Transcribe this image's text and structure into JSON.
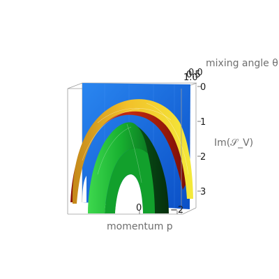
{
  "chart_data": {
    "type": "surface3d",
    "xlabel": "momentum p",
    "ylabel": "mixing angle θ",
    "zlabel": "Im(𝒮_V)",
    "x_ticks": [
      "0",
      "−2"
    ],
    "y_ticks": [
      "0.0",
      "0.5",
      "1.0"
    ],
    "z_ticks": [
      "0",
      "1",
      "2",
      "3"
    ],
    "xlim": [
      -3,
      3
    ],
    "ylim": [
      0,
      1
    ],
    "zlim": [
      0,
      3.2
    ],
    "z_axis_inverted": true,
    "surfaces": [
      {
        "id": "outer",
        "colors": [
          "#f2e41c",
          "#f0a020",
          "#b01c10"
        ],
        "apex": 0.75
      },
      {
        "id": "inner",
        "colors": [
          "#22c23a",
          "#0a8a24",
          "#063d12"
        ],
        "apex": 1.35
      },
      {
        "id": "backdrop",
        "colors": [
          "#1e78ea",
          "#0a4fc8"
        ]
      }
    ]
  }
}
